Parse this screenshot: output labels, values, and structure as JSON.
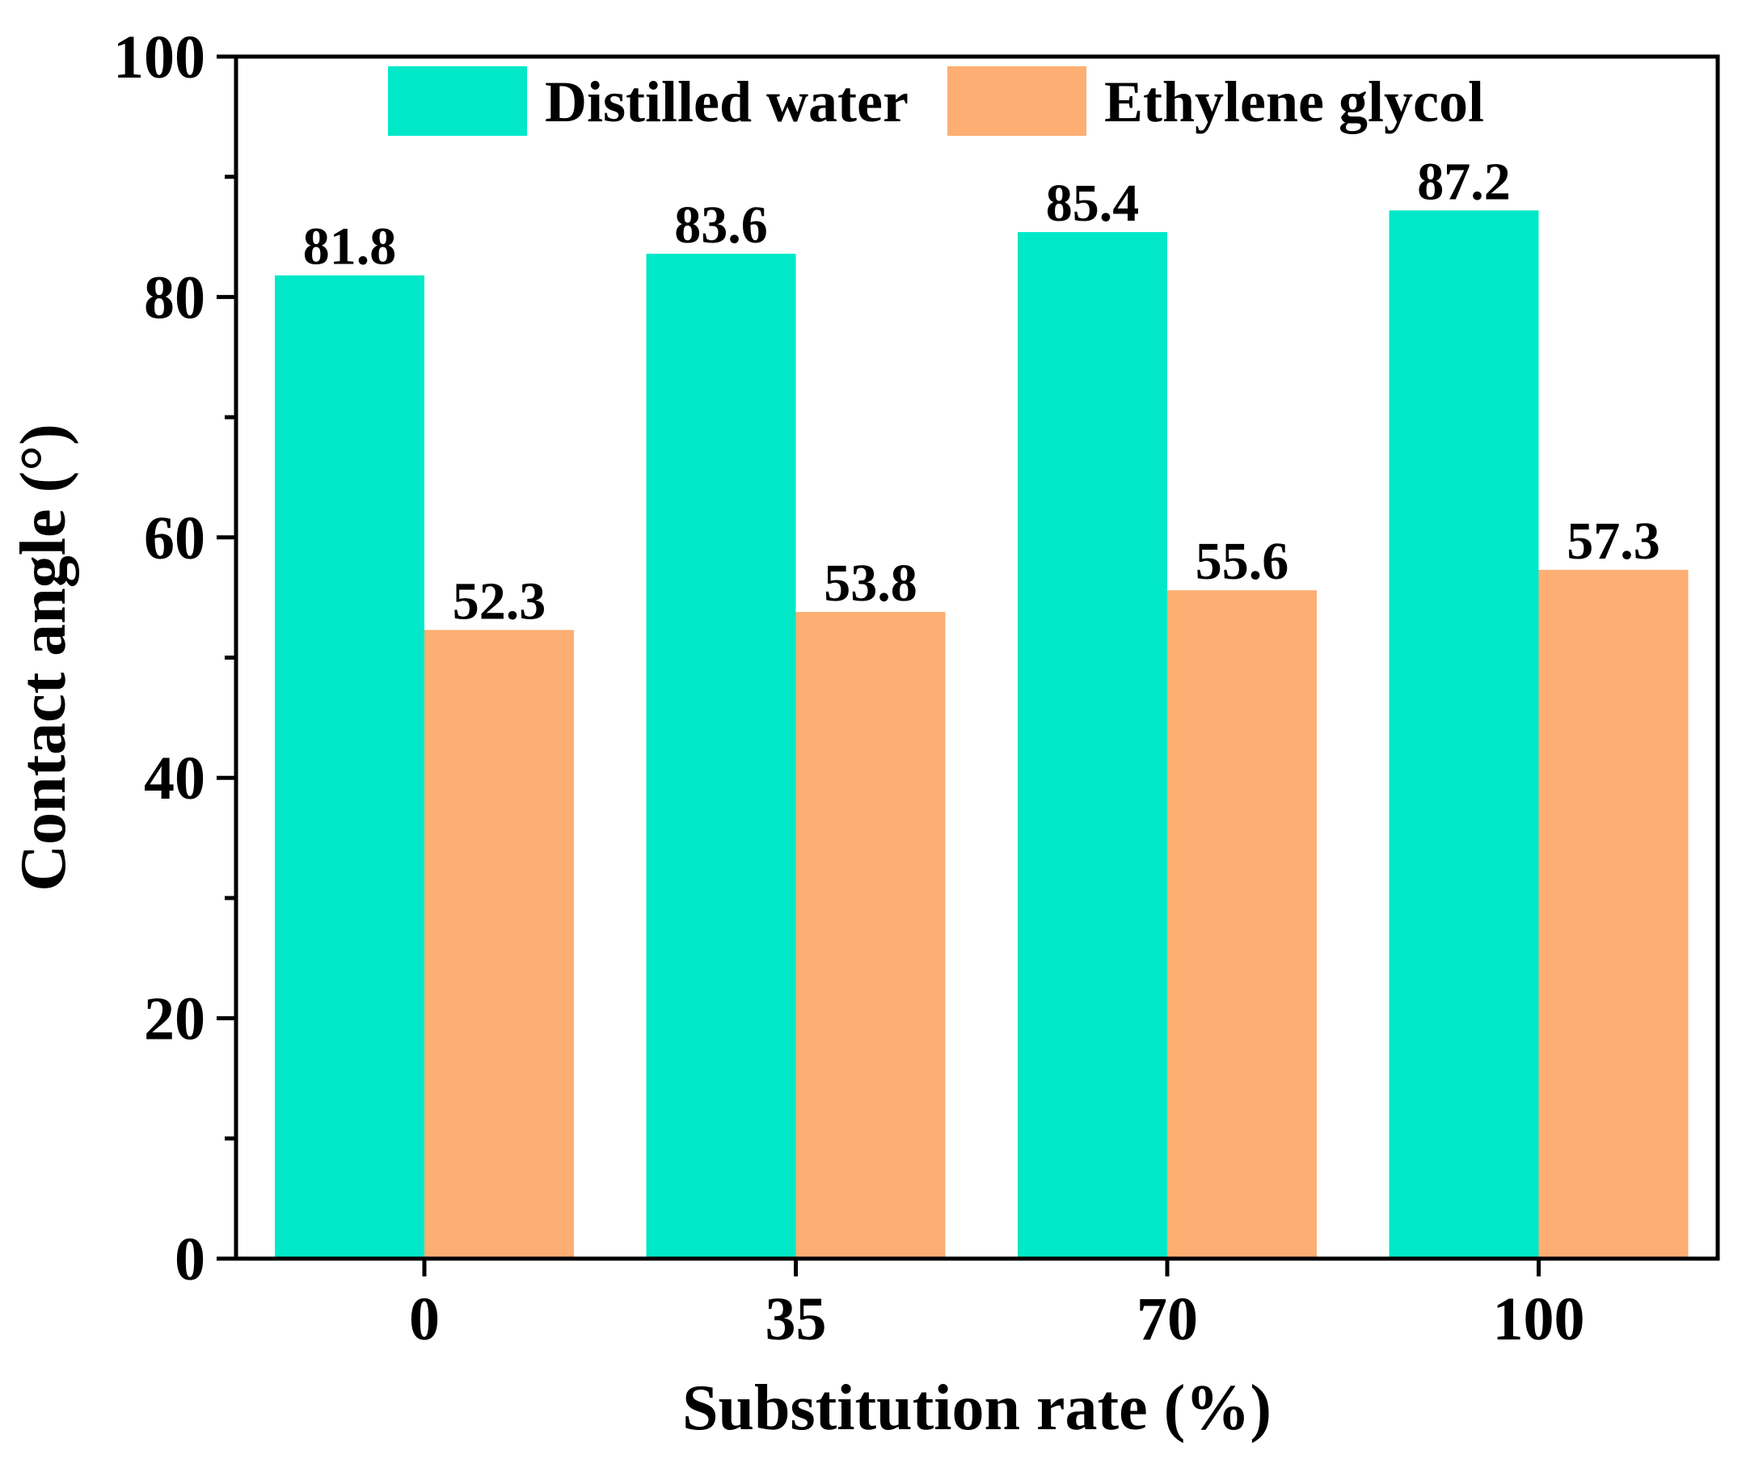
{
  "chart_data": {
    "type": "bar",
    "title": "",
    "xlabel": "Substitution rate (%)",
    "ylabel": "Contact angle (°)",
    "categories": [
      "0",
      "35",
      "70",
      "100"
    ],
    "series": [
      {
        "name": "Distilled water",
        "color": "#00E8C8",
        "values": [
          81.8,
          83.6,
          85.4,
          87.2
        ]
      },
      {
        "name": "Ethylene glycol",
        "color": "#FDAE72",
        "values": [
          52.3,
          53.8,
          55.6,
          57.3
        ]
      }
    ],
    "ylim": [
      0,
      100
    ],
    "yticks": [
      0,
      20,
      40,
      60,
      80,
      100
    ],
    "grid": false,
    "legend_position": "top"
  }
}
